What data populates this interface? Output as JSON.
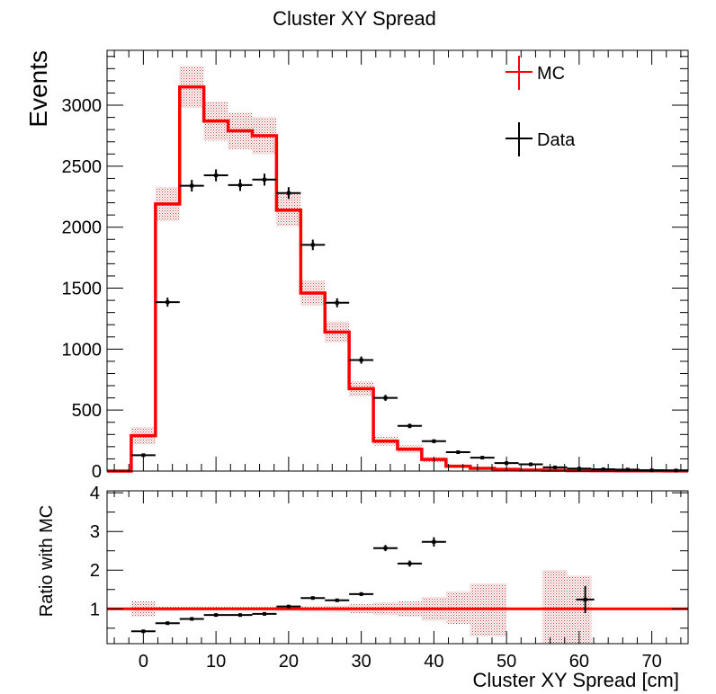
{
  "title": "Cluster XY Spread",
  "xlabel": "Cluster XY Spread [cm]",
  "colors": {
    "mc": "#ff0000",
    "data": "#000000",
    "band": "#b03030"
  },
  "chart_data": [
    {
      "type": "histogram",
      "title": "Cluster XY Spread",
      "ylabel": "Events",
      "xlabel": "",
      "xlim": [
        -5,
        75
      ],
      "ylim": [
        0,
        3450
      ],
      "yticks": [
        0,
        500,
        1000,
        1500,
        2000,
        2500,
        3000
      ],
      "bin_edges": [
        -5,
        -1.67,
        1.67,
        5,
        8.33,
        11.67,
        15,
        18.33,
        21.67,
        25,
        28.33,
        31.67,
        35,
        38.33,
        41.67,
        45,
        48.33,
        51.67,
        55,
        58.33,
        61.67,
        65,
        68.33,
        71.67,
        75
      ],
      "legend": {
        "position": "top-right",
        "entries": [
          "MC",
          "Data"
        ]
      },
      "series": [
        {
          "name": "MC",
          "style": "step",
          "values": [
            0,
            290,
            2190,
            3150,
            2870,
            2790,
            2750,
            2140,
            1460,
            1140,
            675,
            245,
            180,
            95,
            40,
            22,
            14,
            8,
            6,
            4,
            3,
            2,
            2,
            1
          ],
          "uncertainty": [
            0,
            70,
            140,
            170,
            160,
            150,
            150,
            130,
            100,
            85,
            60,
            35,
            30,
            20,
            12,
            8,
            6,
            5,
            4,
            3,
            3,
            2,
            2,
            1
          ]
        },
        {
          "name": "Data",
          "style": "points",
          "x": [
            0,
            3.33,
            6.67,
            10,
            13.33,
            16.67,
            20,
            23.33,
            26.67,
            30,
            33.33,
            36.67,
            40,
            43.33,
            46.67,
            50,
            53.33,
            56.67,
            60,
            63.33,
            66.67,
            70,
            73.33
          ],
          "values": [
            130,
            1385,
            2340,
            2425,
            2345,
            2390,
            2280,
            1855,
            1380,
            910,
            600,
            370,
            245,
            155,
            110,
            65,
            55,
            30,
            20,
            15,
            12,
            6,
            5
          ],
          "errors": [
            12,
            37,
            48,
            49,
            48,
            49,
            48,
            43,
            37,
            30,
            25,
            19,
            16,
            12,
            10,
            8,
            7,
            5,
            4,
            4,
            3,
            2,
            2
          ]
        }
      ]
    },
    {
      "type": "ratio",
      "ylabel": "Ratio with MC",
      "xlabel": "Cluster XY Spread [cm]",
      "xlim": [
        -5,
        75
      ],
      "ylim": [
        0.1,
        4.05
      ],
      "yticks": [
        1,
        2,
        3,
        4
      ],
      "xticks": [
        0,
        10,
        20,
        30,
        40,
        50,
        60,
        70
      ],
      "reference": 1,
      "band": [
        {
          "x0": -1.67,
          "x1": 1.67,
          "lo": 0.8,
          "hi": 1.2
        },
        {
          "x0": 1.67,
          "x1": 5,
          "lo": 0.94,
          "hi": 1.06
        },
        {
          "x0": 5,
          "x1": 8.33,
          "lo": 0.95,
          "hi": 1.05
        },
        {
          "x0": 8.33,
          "x1": 11.67,
          "lo": 0.95,
          "hi": 1.05
        },
        {
          "x0": 11.67,
          "x1": 15,
          "lo": 0.95,
          "hi": 1.05
        },
        {
          "x0": 15,
          "x1": 18.33,
          "lo": 0.95,
          "hi": 1.05
        },
        {
          "x0": 18.33,
          "x1": 21.67,
          "lo": 0.94,
          "hi": 1.06
        },
        {
          "x0": 21.67,
          "x1": 25,
          "lo": 0.93,
          "hi": 1.07
        },
        {
          "x0": 25,
          "x1": 28.33,
          "lo": 0.92,
          "hi": 1.08
        },
        {
          "x0": 28.33,
          "x1": 31.67,
          "lo": 0.88,
          "hi": 1.12
        },
        {
          "x0": 31.67,
          "x1": 35,
          "lo": 0.84,
          "hi": 1.16
        },
        {
          "x0": 35,
          "x1": 38.33,
          "lo": 0.8,
          "hi": 1.2
        },
        {
          "x0": 38.33,
          "x1": 41.67,
          "lo": 0.7,
          "hi": 1.3
        },
        {
          "x0": 41.67,
          "x1": 45,
          "lo": 0.6,
          "hi": 1.45
        },
        {
          "x0": 45,
          "x1": 48.33,
          "lo": 0.3,
          "hi": 1.65
        },
        {
          "x0": 48.33,
          "x1": 50,
          "lo": 0.3,
          "hi": 1.65
        },
        {
          "x0": 55,
          "x1": 58.33,
          "lo": 0.05,
          "hi": 2.0
        },
        {
          "x0": 58.33,
          "x1": 61.67,
          "lo": 0.05,
          "hi": 1.85
        }
      ],
      "series": [
        {
          "name": "Data",
          "x": [
            0,
            3.33,
            6.67,
            10,
            13.33,
            16.67,
            20,
            23.33,
            26.67,
            30,
            33.33,
            36.67,
            40,
            60.83
          ],
          "values": [
            0.42,
            0.63,
            0.74,
            0.84,
            0.84,
            0.87,
            1.06,
            1.28,
            1.22,
            1.38,
            2.57,
            2.17,
            2.73,
            1.24
          ],
          "errors": [
            0.04,
            0.02,
            0.02,
            0.02,
            0.02,
            0.02,
            0.03,
            0.04,
            0.04,
            0.05,
            0.08,
            0.08,
            0.12,
            0.35
          ],
          "xerr": [
            1.67,
            1.67,
            1.67,
            1.67,
            1.67,
            1.67,
            1.67,
            1.67,
            1.67,
            1.67,
            1.67,
            1.67,
            1.67,
            1.25
          ]
        }
      ]
    }
  ]
}
